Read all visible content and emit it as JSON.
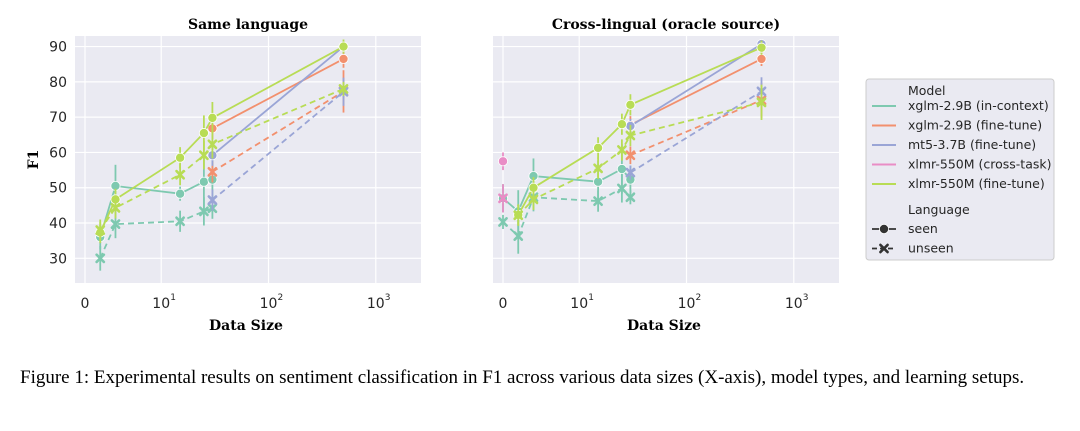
{
  "chart_data": {
    "type": "line",
    "ylabel": "F1",
    "xlabel": "Data Size",
    "x_ticks": [
      {
        "value": 0,
        "base": "0",
        "exp": ""
      },
      {
        "value": 10,
        "base": "10",
        "exp": "1"
      },
      {
        "value": 100,
        "base": "10",
        "exp": "2"
      },
      {
        "value": 1000,
        "base": "10",
        "exp": "3"
      }
    ],
    "y_ticks": [
      30,
      40,
      50,
      60,
      70,
      80,
      90
    ],
    "ylim": [
      23,
      93
    ],
    "legend": {
      "model_title": "Model",
      "language_title": "Language",
      "models": [
        {
          "key": "xglm_ic",
          "label": "xglm-2.9B (in-context)",
          "color": "#7ec9b0"
        },
        {
          "key": "xglm_ft",
          "label": "xglm-2.9B (fine-tune)",
          "color": "#f2906e"
        },
        {
          "key": "mt5_ft",
          "label": "mt5-3.7B (fine-tune)",
          "color": "#9aa5d6"
        },
        {
          "key": "xlmr_ct",
          "label": "xlmr-550M (cross-task)",
          "color": "#e98dc6"
        },
        {
          "key": "xlmr_ft",
          "label": "xlmr-550M (fine-tune)",
          "color": "#b8dc55"
        }
      ],
      "languages": [
        {
          "key": "seen",
          "label": "seen"
        },
        {
          "key": "unseen",
          "label": "unseen"
        }
      ]
    },
    "panels": [
      {
        "title": "Same language",
        "series": [
          {
            "model": "xglm_ic",
            "lang": "seen",
            "x": [
              2,
              4,
              15,
              25,
              30
            ],
            "y": [
              36,
              50.5,
              48.3,
              51.7,
              52.3
            ],
            "err": [
              3.5,
              6,
              2,
              8,
              7
            ]
          },
          {
            "model": "xglm_ic",
            "lang": "unseen",
            "x": [
              2,
              4,
              15,
              25,
              30
            ],
            "y": [
              30,
              39.7,
              40.5,
              43.3,
              44.2
            ],
            "err": [
              3.5,
              4,
              3,
              4,
              3
            ]
          },
          {
            "model": "xglm_ft",
            "lang": "seen",
            "x": [
              30,
              500
            ],
            "y": [
              66.8,
              86.5
            ],
            "err": [
              3,
              2.5
            ]
          },
          {
            "model": "xglm_ft",
            "lang": "unseen",
            "x": [
              30,
              500
            ],
            "y": [
              54.5,
              77.3
            ],
            "err": [
              3,
              6
            ]
          },
          {
            "model": "mt5_ft",
            "lang": "seen",
            "x": [
              30,
              500
            ],
            "y": [
              59.2,
              90
            ],
            "err": [
              3,
              1.5
            ]
          },
          {
            "model": "mt5_ft",
            "lang": "unseen",
            "x": [
              30,
              500
            ],
            "y": [
              46.5,
              77.2
            ],
            "err": [
              3,
              4
            ]
          },
          {
            "model": "xlmr_ft",
            "lang": "seen",
            "x": [
              2,
              4,
              15,
              25,
              30,
              500
            ],
            "y": [
              37.3,
              46.7,
              58.5,
              65.5,
              69.8,
              90
            ],
            "err": [
              3,
              3,
              3,
              5,
              4.5,
              2
            ]
          },
          {
            "model": "xlmr_ft",
            "lang": "unseen",
            "x": [
              2,
              4,
              15,
              25,
              30,
              500
            ],
            "y": [
              38,
              44.3,
              53.7,
              59.2,
              62.3,
              78
            ],
            "err": [
              3,
              3,
              3,
              4,
              4,
              2
            ]
          }
        ]
      },
      {
        "title": "Cross-lingual (oracle source)",
        "series": [
          {
            "model": "xglm_ic",
            "lang": "seen",
            "x": [
              0,
              2,
              4,
              15,
              25,
              30
            ],
            "y": [
              47,
              43.3,
              53.3,
              51.7,
              55.3,
              52.3
            ],
            "err": [
              4,
              6,
              5,
              6,
              7,
              4
            ]
          },
          {
            "model": "xglm_ic",
            "lang": "unseen",
            "x": [
              0,
              2,
              4,
              15,
              25,
              30
            ],
            "y": [
              40.3,
              36.3,
              47.3,
              46.2,
              49.8,
              47.3
            ],
            "err": [
              2,
              5,
              4,
              3,
              4,
              2
            ]
          },
          {
            "model": "xglm_ft",
            "lang": "seen",
            "x": [
              30,
              500
            ],
            "y": [
              67.8,
              86.5
            ],
            "err": [
              2.5,
              2
            ]
          },
          {
            "model": "xglm_ft",
            "lang": "unseen",
            "x": [
              30,
              500
            ],
            "y": [
              59.2,
              74.8
            ],
            "err": [
              2.5,
              5
            ]
          },
          {
            "model": "mt5_ft",
            "lang": "seen",
            "x": [
              30,
              500
            ],
            "y": [
              67.5,
              90.7
            ],
            "err": [
              2,
              1
            ]
          },
          {
            "model": "mt5_ft",
            "lang": "unseen",
            "x": [
              30,
              500
            ],
            "y": [
              54.3,
              77.3
            ],
            "err": [
              2,
              4
            ]
          },
          {
            "model": "xlmr_ct",
            "lang": "seen",
            "x": [
              0
            ],
            "y": [
              57.5
            ],
            "err": [
              2.5
            ]
          },
          {
            "model": "xlmr_ct",
            "lang": "unseen",
            "x": [
              0
            ],
            "y": [
              47
            ],
            "err": [
              4
            ]
          },
          {
            "model": "xlmr_ft",
            "lang": "seen",
            "x": [
              2,
              4,
              15,
              25,
              30,
              500
            ],
            "y": [
              42.3,
              50,
              61.3,
              68,
              73.5,
              89.7
            ],
            "err": [
              3,
              3,
              3,
              3,
              3,
              2
            ]
          },
          {
            "model": "xlmr_ft",
            "lang": "unseen",
            "x": [
              2,
              4,
              15,
              25,
              30,
              500
            ],
            "y": [
              42.2,
              46.7,
              55.5,
              60.7,
              64.8,
              74.2
            ],
            "err": [
              3,
              3,
              3,
              3,
              3,
              5
            ]
          }
        ]
      }
    ]
  },
  "caption": "Figure 1: Experimental results on sentiment classification in F1 across various data sizes (X-axis), model types, and learning setups."
}
